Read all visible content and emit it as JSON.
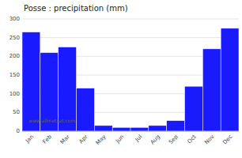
{
  "chart_data": {
    "type": "bar",
    "title": "Posse : precipitation (mm)",
    "categories": [
      "Jan",
      "Feb",
      "Mar",
      "Apr",
      "May",
      "Jun",
      "Jul",
      "Aug",
      "Sep",
      "Oct",
      "Nov",
      "Dec"
    ],
    "values": [
      265,
      210,
      225,
      115,
      15,
      10,
      10,
      15,
      28,
      120,
      220,
      275
    ],
    "color": "#1a1aff",
    "ylim": [
      0,
      300
    ],
    "yticks": [
      0,
      50,
      100,
      150,
      200,
      250,
      300
    ],
    "grid": true,
    "annotations": [
      "www.allmetsat.com"
    ]
  }
}
